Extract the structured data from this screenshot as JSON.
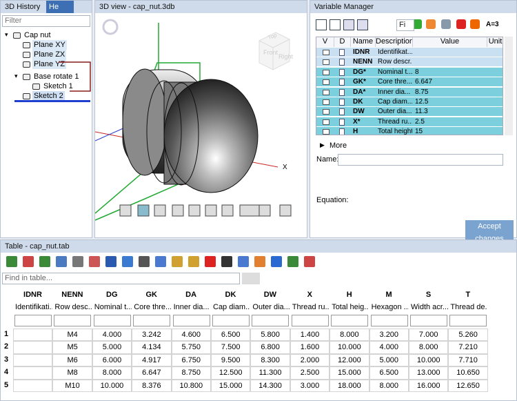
{
  "history": {
    "tabs": [
      "3D History",
      "He"
    ],
    "filter": "Filter",
    "nodes": [
      {
        "label": "Cap nut",
        "level": 0
      },
      {
        "label": "Plane XY",
        "level": 1
      },
      {
        "label": "Plane ZX",
        "level": 1
      },
      {
        "label": "Plane YZ",
        "level": 1
      },
      {
        "label": "Base rotate 1",
        "level": 1
      },
      {
        "label": "Sketch 1",
        "level": 2
      },
      {
        "label": "Sketch 2",
        "level": 1
      }
    ]
  },
  "view": {
    "title": "3D view - cap_nut.3db",
    "axis_label": "X",
    "cube": [
      "Top",
      "Front",
      "Right"
    ]
  },
  "variables": {
    "title": "Variable Manager",
    "search": "Fi",
    "tool_label": "A=3",
    "columns": [
      "V",
      "D",
      "Name",
      "Description",
      "Value",
      "Unit"
    ],
    "rows": [
      [
        "IDNR",
        "Identifikat...",
        ""
      ],
      [
        "NENN",
        "Row descr...",
        ""
      ],
      [
        "DG*",
        "Nominal t...",
        "8"
      ],
      [
        "GK*",
        "Core thre...",
        "6.647"
      ],
      [
        "DA*",
        "Inner dia...",
        "8.75"
      ],
      [
        "DK",
        "Cap diam...",
        "12.5"
      ],
      [
        "DW",
        "Outer dia...",
        "11.3"
      ],
      [
        "X*",
        "Thread ru...",
        "2.5"
      ],
      [
        "H",
        "Total height",
        "15"
      ]
    ],
    "more": "More",
    "name_label": "Name:",
    "equation_label": "Equation:",
    "accept": "Accept changes"
  },
  "table": {
    "title": "Table - cap_nut.tab",
    "find": "Find in table...",
    "columns": [
      [
        "IDNR",
        "Identifikati..."
      ],
      [
        "NENN",
        "Row desc..."
      ],
      [
        "DG",
        "Nominal t..."
      ],
      [
        "GK",
        "Core thre..."
      ],
      [
        "DA",
        "Inner dia..."
      ],
      [
        "DK",
        "Cap diam..."
      ],
      [
        "DW",
        "Outer dia..."
      ],
      [
        "X",
        "Thread ru..."
      ],
      [
        "H",
        "Total heig..."
      ],
      [
        "M",
        "Hexagon ..."
      ],
      [
        "S",
        "Width acr..."
      ],
      [
        "T",
        "Thread de..."
      ]
    ],
    "row_numbers": [
      "1",
      "2",
      "3",
      "4",
      "5"
    ],
    "rows": [
      [
        "",
        "M4",
        "4.000",
        "3.242",
        "4.600",
        "6.500",
        "5.800",
        "1.400",
        "8.000",
        "3.200",
        "7.000",
        "5.260"
      ],
      [
        "",
        "M5",
        "5.000",
        "4.134",
        "5.750",
        "7.500",
        "6.800",
        "1.600",
        "10.000",
        "4.000",
        "8.000",
        "7.210"
      ],
      [
        "",
        "M6",
        "6.000",
        "4.917",
        "6.750",
        "9.500",
        "8.300",
        "2.000",
        "12.000",
        "5.000",
        "10.000",
        "7.710"
      ],
      [
        "",
        "M8",
        "8.000",
        "6.647",
        "8.750",
        "12.500",
        "11.300",
        "2.500",
        "15.000",
        "6.500",
        "13.000",
        "10.650"
      ],
      [
        "",
        "M10",
        "10.000",
        "8.376",
        "10.800",
        "15.000",
        "14.300",
        "3.000",
        "18.000",
        "8.000",
        "16.000",
        "12.650"
      ]
    ]
  }
}
